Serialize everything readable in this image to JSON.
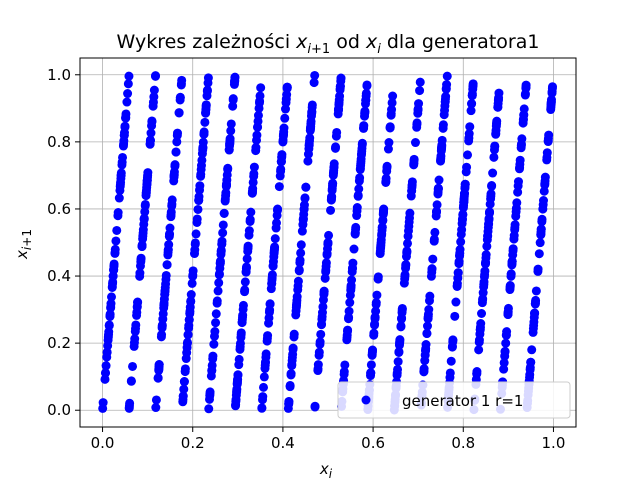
{
  "chart_data": {
    "type": "scatter",
    "title": "Wykres zależności x_{i+1} od x_i dla generatora1",
    "xlabel": "x_i",
    "ylabel": "x_{i+1}",
    "xlim": [
      -0.05,
      1.05
    ],
    "ylim": [
      -0.05,
      1.05
    ],
    "xticks": [
      "0.0",
      "0.2",
      "0.4",
      "0.6",
      "0.8",
      "1.0"
    ],
    "yticks": [
      "0.0",
      "0.2",
      "0.4",
      "0.6",
      "0.8",
      "1.0"
    ],
    "grid": true,
    "legend_position": "lower-right",
    "legend_entries": [
      "generator 1 r=1"
    ],
    "series": [
      {
        "name": "generator 1 r=1",
        "color": "#0000ff",
        "description": "points lie on 17 parallel line segments y = 17x - k (k = 0..16)",
        "slope": 17,
        "segments_k": [
          0,
          1,
          2,
          3,
          4,
          5,
          6,
          7,
          8,
          9,
          10,
          11,
          12,
          13,
          14,
          15,
          16
        ]
      }
    ]
  }
}
